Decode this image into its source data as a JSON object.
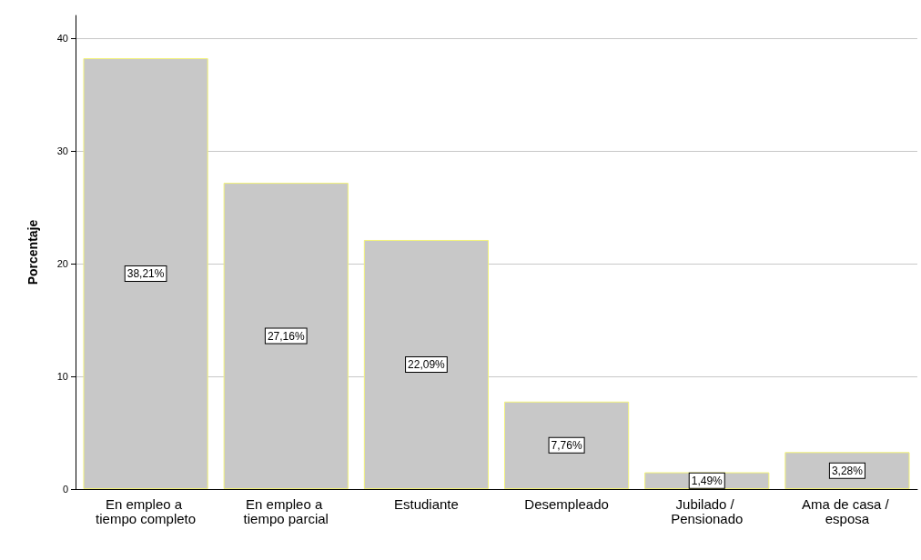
{
  "chart_data": {
    "type": "bar",
    "ylabel": "Porcentaje",
    "categories": [
      "En empleo a tiempo completo",
      "En empleo a tiempo parcial",
      "Estudiante",
      "Desempleado",
      "Jubilado / Pensionado",
      "Ama de casa / esposa"
    ],
    "values": [
      38.21,
      27.16,
      22.09,
      7.76,
      1.49,
      3.28
    ],
    "value_labels": [
      "38,21%",
      "27,16%",
      "22,09%",
      "7,76%",
      "1,49%",
      "3,28%"
    ],
    "color": "#c8c8c8",
    "ylim": [
      0,
      42
    ],
    "yticks": [
      0,
      10,
      20,
      30,
      40
    ],
    "grid": "y"
  }
}
